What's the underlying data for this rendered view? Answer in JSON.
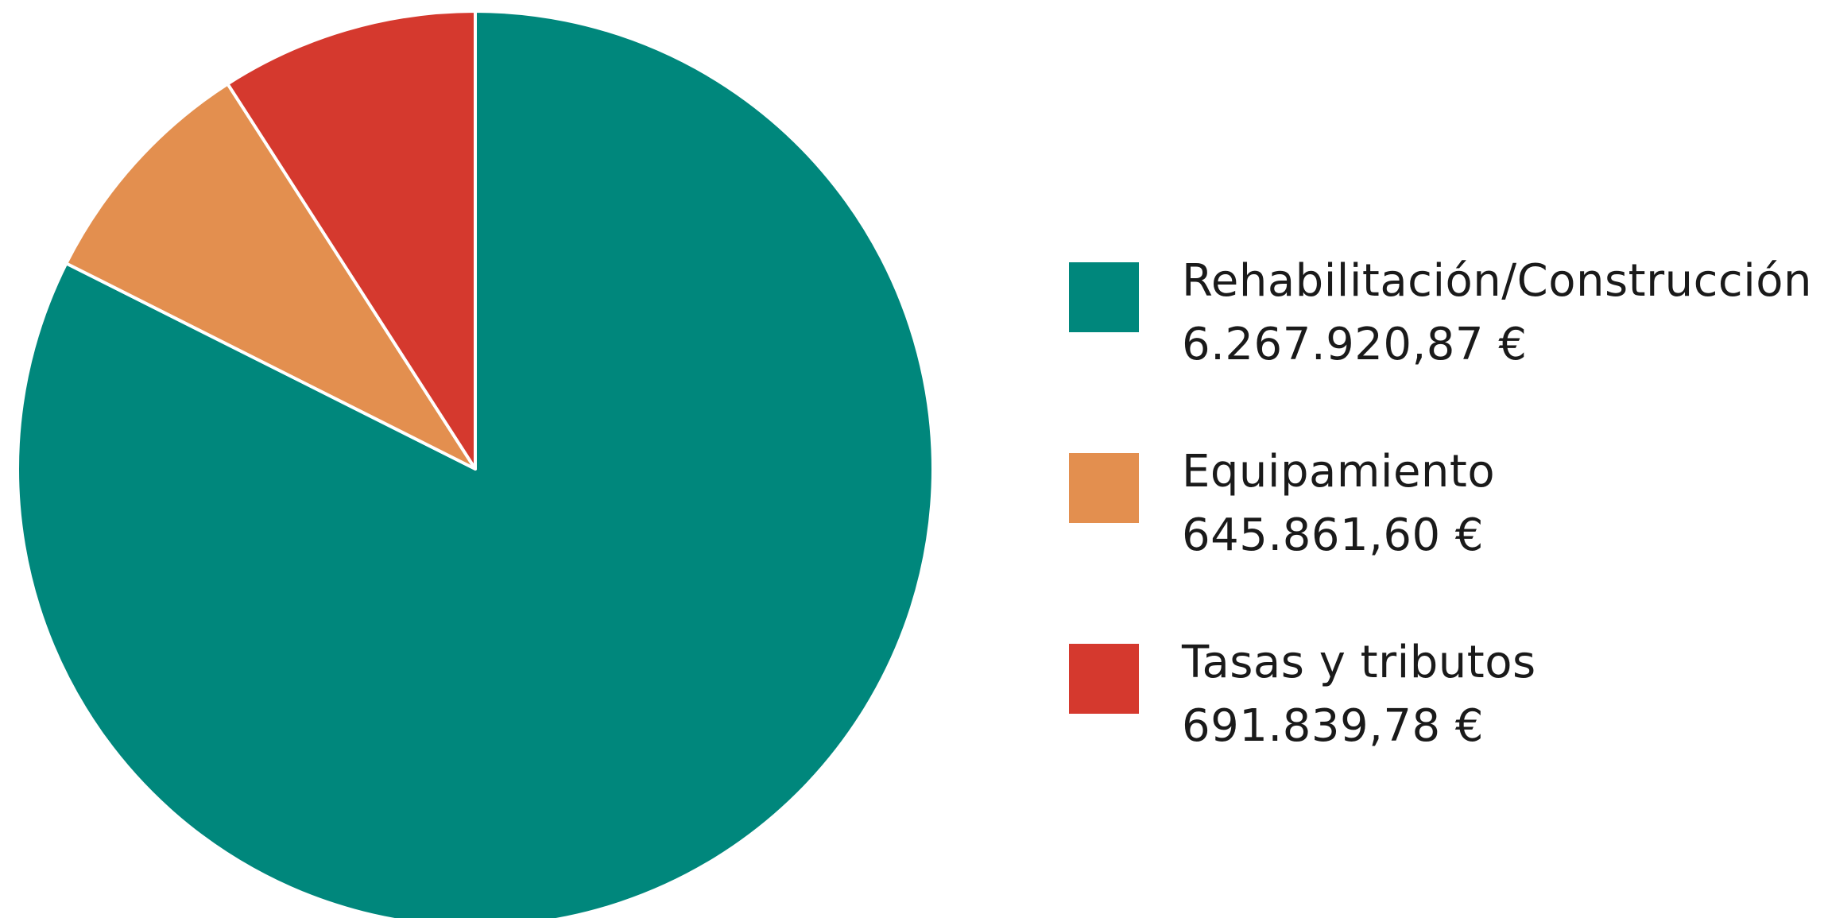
{
  "chart_data": {
    "type": "pie",
    "legend_position": "right",
    "start_angle_deg": 0,
    "direction": "clockwise",
    "slices": [
      {
        "label": "Rehabilitación/Construcción",
        "value": 6267920.87,
        "value_text": "6.267.920,87 €",
        "color": "#00877C"
      },
      {
        "label": "Equipamiento",
        "value": 645861.6,
        "value_text": "645.861,60 €",
        "color": "#E38F4F"
      },
      {
        "label": "Tasas y tributos",
        "value": 691839.78,
        "value_text": "691.839,78 €",
        "color": "#D5392E"
      }
    ]
  }
}
